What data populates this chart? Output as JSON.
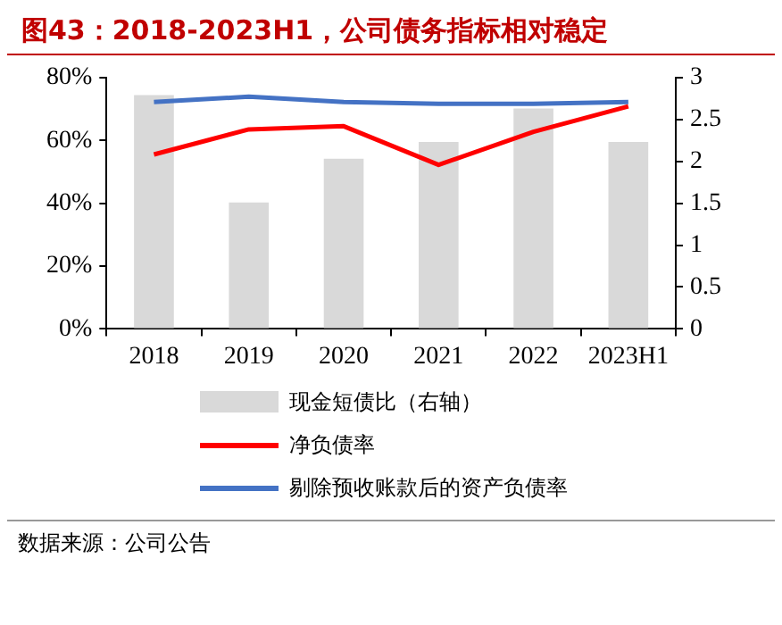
{
  "chart_data": {
    "type": "bar",
    "title": "图43：2018-2023H1，公司债务指标相对稳定",
    "categories": [
      "2018",
      "2019",
      "2020",
      "2021",
      "2022",
      "2023H1"
    ],
    "series": [
      {
        "name": "现金短债比（右轴）",
        "axis": "y2",
        "color": "#d9d9d9",
        "values": [
          2.79,
          1.51,
          2.03,
          2.23,
          2.63,
          2.23
        ]
      },
      {
        "name": "净负债率",
        "type": "line",
        "color": "#ff0000",
        "values": [
          55.5,
          63.5,
          64.5,
          52.2,
          62.7,
          70.8
        ]
      },
      {
        "name": "剔除预收账款后的资产负债率",
        "type": "line",
        "color": "#4472c4",
        "values": [
          72.2,
          73.9,
          72.2,
          71.6,
          71.6,
          72.2
        ]
      }
    ],
    "ylim": [
      0,
      80
    ],
    "yticks": [
      {
        "value": 0,
        "label": "0%"
      },
      {
        "value": 20,
        "label": "20%"
      },
      {
        "value": 40,
        "label": "40%"
      },
      {
        "value": 60,
        "label": "60%"
      },
      {
        "value": 80,
        "label": "80%"
      }
    ],
    "y2lim": [
      0,
      3
    ],
    "y2ticks": [
      0,
      0.5,
      1,
      1.5,
      2,
      2.5,
      3
    ],
    "grid": false,
    "legend": "bottom",
    "marker": "none",
    "line_style": "solid",
    "annotations": [
      "数据来源：公司公告"
    ]
  }
}
